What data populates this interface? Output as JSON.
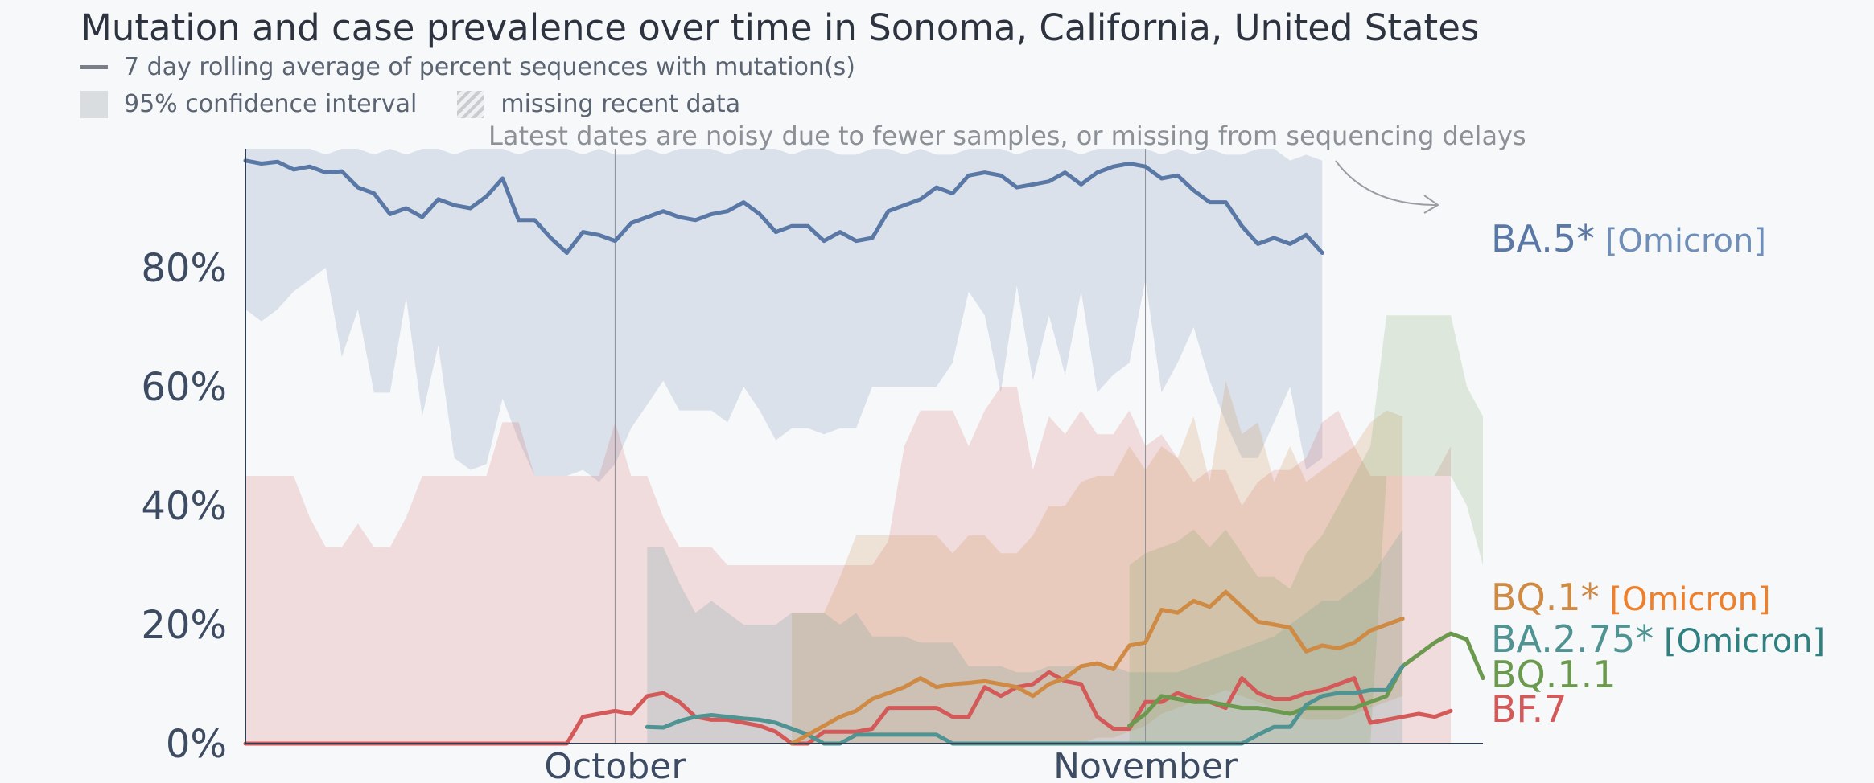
{
  "title": "Mutation and case prevalence over time in Sonoma, California, United States",
  "legend": {
    "line_label": "7 day rolling average of percent sequences with mutation(s)",
    "ci_label": "95% confidence interval",
    "missing_label": "missing recent data"
  },
  "note": "Latest dates are noisy due to fewer samples, or missing from sequencing delays",
  "colors": {
    "BA.5": "#5a78a6",
    "BQ.1": "#cf8a44",
    "BA.2.75": "#4f9393",
    "BQ.1.1": "#6b9a4f",
    "BF.7": "#d45a5a",
    "tag_BQ.1": "#f07f2a",
    "tag_BA.2.75": "#2f8080",
    "tag_BA.5": "#6f8fb8"
  },
  "series_labels": [
    {
      "name": "BA.5*",
      "tag": "[Omicron]",
      "key": "BA.5"
    },
    {
      "name": "BQ.1*",
      "tag": "[Omicron]",
      "key": "BQ.1"
    },
    {
      "name": "BA.2.75*",
      "tag": "[Omicron]",
      "key": "BA.2.75"
    },
    {
      "name": "BQ.1.1",
      "tag": "",
      "key": "BQ.1.1"
    },
    {
      "name": "BF.7",
      "tag": "",
      "key": "BF.7"
    }
  ],
  "chart_data": {
    "type": "line",
    "x_start_day": 0,
    "x_end_day": 77,
    "x_ticks": [
      {
        "day": 23,
        "label": "October"
      },
      {
        "day": 56,
        "label": "November"
      }
    ],
    "y_ticks": [
      {
        "v": 0,
        "label": "0%"
      },
      {
        "v": 20,
        "label": "20%"
      },
      {
        "v": 40,
        "label": "40%"
      },
      {
        "v": 60,
        "label": "60%"
      },
      {
        "v": 80,
        "label": "80%"
      }
    ],
    "ylim": [
      0,
      100
    ],
    "grid": false,
    "series": [
      {
        "name": "BA.5*",
        "key": "BA.5",
        "start": 0,
        "values": [
          98,
          97.5,
          97.8,
          96.5,
          97,
          96,
          96.2,
          93.5,
          92.5,
          89,
          90,
          88.5,
          91.5,
          90.5,
          90,
          92,
          95,
          88,
          88,
          85,
          82.5,
          86,
          85.5,
          84.5,
          87.5,
          88.5,
          89.5,
          88.5,
          88,
          89,
          89.5,
          91,
          89,
          86,
          87,
          87,
          84.5,
          86,
          84.5,
          85,
          89.5,
          90.5,
          91.5,
          93.5,
          92.5,
          95.5,
          96,
          95.5,
          93.5,
          94,
          94.5,
          96,
          94,
          96,
          97,
          97.5,
          97,
          95,
          95.5,
          93,
          91,
          91,
          87,
          84,
          85,
          84,
          85.5,
          82.5
        ],
        "ci_upper": [
          100,
          100,
          100,
          100,
          100,
          99,
          100,
          100,
          99,
          100,
          99,
          100,
          100,
          99,
          100,
          100,
          100,
          99,
          100,
          100,
          100,
          99,
          100,
          99,
          99,
          100,
          99,
          100,
          100,
          100,
          99,
          100,
          100,
          100,
          99,
          100,
          100,
          99,
          99,
          100,
          100,
          99,
          100,
          99,
          99,
          100,
          100,
          100,
          99,
          100,
          100,
          100,
          99,
          100,
          100,
          100,
          100,
          99,
          100,
          99,
          100,
          99,
          99,
          100,
          100,
          98,
          99,
          98
        ],
        "ci_lower": [
          73,
          71,
          73,
          76,
          78,
          80,
          65,
          73,
          59,
          59,
          75,
          55,
          67,
          48,
          46,
          47,
          58,
          51,
          45,
          45,
          45,
          46,
          44,
          47,
          53,
          57,
          61,
          56,
          56,
          56,
          54,
          60,
          56,
          51,
          53,
          53,
          52,
          53,
          53,
          60,
          60,
          60,
          60,
          60,
          64,
          76,
          72,
          59,
          77,
          61,
          72,
          62,
          76,
          59,
          62,
          64,
          78,
          59,
          64,
          70,
          61,
          54,
          48,
          48,
          54,
          60,
          46,
          48
        ]
      },
      {
        "name": "BQ.1*",
        "key": "BQ.1",
        "start": 34,
        "values": [
          0,
          1.5,
          3,
          4.5,
          5.5,
          7.5,
          8.5,
          9.5,
          11,
          9.5,
          10,
          10.2,
          10.5,
          10,
          9.5,
          8,
          10,
          11,
          13,
          13.5,
          12.5,
          16.5,
          17,
          22.5,
          22,
          24,
          23,
          25.5,
          23,
          20.5,
          20,
          19.5,
          15.5,
          16.5,
          16,
          17,
          19,
          20,
          21
        ],
        "ci_upper": [
          22,
          22,
          22,
          28,
          35,
          35,
          35,
          35,
          35,
          35,
          32,
          35,
          35,
          32,
          32,
          35,
          40,
          40,
          44,
          45,
          45,
          50,
          46,
          50,
          48,
          55,
          44,
          61,
          52,
          54,
          44,
          50,
          44,
          46,
          48,
          50,
          54,
          56,
          55
        ],
        "ci_lower": [
          0,
          0,
          0,
          0,
          0,
          0,
          0,
          0,
          0,
          0,
          0,
          0,
          0,
          0,
          0,
          0,
          0,
          0,
          0,
          1,
          1,
          2,
          3,
          5,
          6,
          7,
          8,
          9,
          8,
          7,
          6,
          5,
          4,
          4,
          4,
          5,
          6,
          7,
          8
        ]
      },
      {
        "name": "BA.2.75*",
        "key": "BA.2.75",
        "start": 25,
        "values": [
          2.8,
          2.7,
          3.8,
          4.5,
          4.8,
          4.5,
          4.2,
          4,
          3.5,
          2.5,
          1.5,
          0,
          0,
          1.5,
          1.5,
          1.5,
          1.5,
          1.5,
          1.5,
          0,
          0,
          0,
          0,
          0,
          0,
          0,
          0,
          0,
          0,
          0,
          0,
          0,
          0,
          0,
          0,
          0,
          0,
          0,
          1.5,
          2.8,
          2.8,
          6.5,
          8,
          8.5,
          8.5,
          9,
          9,
          13
        ],
        "ci_upper": [
          33,
          33,
          27,
          22,
          24,
          22,
          20,
          20,
          20,
          22,
          22,
          22,
          20,
          22,
          18,
          18,
          18,
          17,
          17,
          17,
          13,
          13,
          13,
          12,
          12,
          13,
          13,
          13,
          13,
          13,
          12,
          12,
          12,
          12,
          13,
          14,
          15,
          16,
          17,
          18,
          20,
          22,
          24,
          24,
          26,
          28,
          32,
          36
        ],
        "ci_lower": [
          0,
          0,
          0,
          0,
          0,
          0,
          0,
          0,
          0,
          0,
          0,
          0,
          0,
          0,
          0,
          0,
          0,
          0,
          0,
          0,
          0,
          0,
          0,
          0,
          0,
          0,
          0,
          0,
          0,
          0,
          0,
          0,
          0,
          0,
          0,
          0,
          0,
          0,
          0,
          0,
          0,
          0,
          0,
          0,
          0,
          0,
          0,
          0
        ]
      },
      {
        "name": "BQ.1.1",
        "key": "BQ.1.1",
        "start": 55,
        "values": [
          3,
          5,
          8,
          7.5,
          7,
          7,
          6.5,
          6,
          6,
          5.5,
          5,
          6,
          6,
          6,
          6,
          7,
          8,
          13,
          15,
          17,
          18.5,
          17.5,
          11
        ],
        "ci_upper": [
          30,
          32,
          33,
          34,
          36,
          33,
          36,
          32,
          28,
          28,
          26,
          32,
          35,
          40,
          45,
          50,
          72,
          72,
          72,
          72,
          72,
          60,
          55
        ],
        "ci_lower": [
          0,
          0,
          0,
          0,
          0,
          0,
          0,
          0,
          0,
          0,
          0,
          0,
          0,
          0,
          0,
          0,
          45,
          45,
          45,
          45,
          45,
          40,
          30
        ]
      },
      {
        "name": "BF.7",
        "key": "BF.7",
        "start": 0,
        "values": [
          0,
          0,
          0,
          0,
          0,
          0,
          0,
          0,
          0,
          0,
          0,
          0,
          0,
          0,
          0,
          0,
          0,
          0,
          0,
          0,
          0,
          4.5,
          5,
          5.5,
          5,
          8,
          8.5,
          7,
          4.5,
          4,
          4,
          3.5,
          3,
          2,
          0,
          0,
          2,
          2,
          2,
          2.5,
          6,
          6,
          6,
          6,
          4.5,
          4.5,
          9.5,
          8,
          9.5,
          10,
          12,
          10.5,
          10,
          4.5,
          2.5,
          2.5,
          7,
          7,
          8.5,
          7.5,
          7,
          6,
          11,
          8.5,
          7.5,
          7.5,
          8.5,
          9,
          10,
          11,
          3.5,
          4,
          4.5,
          5,
          4.5,
          5.5
        ],
        "ci_upper": [
          45,
          45,
          45,
          45,
          38,
          33,
          33,
          37,
          33,
          33,
          38,
          45,
          45,
          45,
          45,
          45,
          54,
          54,
          45,
          45,
          45,
          45,
          45,
          54,
          45,
          45,
          38,
          33,
          33,
          33,
          30,
          30,
          30,
          30,
          30,
          30,
          30,
          30,
          30,
          30,
          34,
          50,
          56,
          56,
          56,
          50,
          56,
          60,
          60,
          46,
          55,
          52,
          56,
          52,
          52,
          56,
          50,
          52,
          48,
          44,
          46,
          46,
          40,
          44,
          46,
          46,
          48,
          54,
          56,
          50,
          45,
          45,
          45,
          45,
          45,
          50
        ],
        "ci_lower": [
          0,
          0,
          0,
          0,
          0,
          0,
          0,
          0,
          0,
          0,
          0,
          0,
          0,
          0,
          0,
          0,
          0,
          0,
          0,
          0,
          0,
          0,
          0,
          0,
          0,
          0,
          0,
          0,
          0,
          0,
          0,
          0,
          0,
          0,
          0,
          0,
          0,
          0,
          0,
          0,
          0,
          0,
          0,
          0,
          0,
          0,
          0,
          0,
          0,
          0,
          0,
          0,
          0,
          0,
          0,
          0,
          0,
          0,
          0,
          0,
          0,
          0,
          0,
          0,
          0,
          0,
          0,
          0,
          0,
          0,
          0,
          0,
          0,
          0,
          0,
          0
        ]
      }
    ]
  }
}
